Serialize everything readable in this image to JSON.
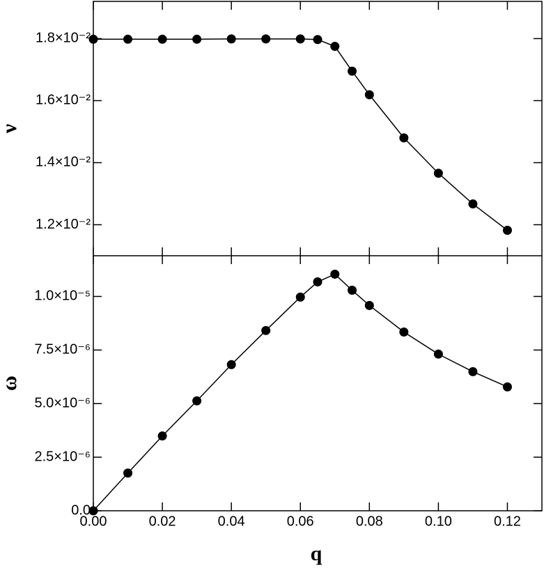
{
  "chart_data": [
    {
      "type": "line",
      "y_label": "ν",
      "x": [
        0,
        0.01,
        0.02,
        0.03,
        0.04,
        0.05,
        0.06,
        0.065,
        0.07,
        0.075,
        0.08,
        0.09,
        0.1,
        0.11,
        0.12
      ],
      "values": [
        0.01798,
        0.01798,
        0.01798,
        0.01798,
        0.01799,
        0.01799,
        0.01799,
        0.01797,
        0.01775,
        0.01695,
        0.01619,
        0.0148,
        0.01366,
        0.01267,
        0.01182
      ],
      "color": "#000000",
      "markers": true,
      "xlim": [
        0,
        0.13
      ],
      "xticks": [
        0,
        0.02,
        0.04,
        0.06,
        0.08,
        0.1,
        0.12
      ],
      "ylim": [
        0.011,
        0.0192
      ],
      "yticks": [
        {
          "value": 0.012,
          "label": "1.2×10⁻²"
        },
        {
          "value": 0.014,
          "label": "1.4×10⁻²"
        },
        {
          "value": 0.016,
          "label": "1.6×10⁻²"
        },
        {
          "value": 0.018,
          "label": "1.8×10⁻²"
        }
      ]
    },
    {
      "type": "line",
      "y_label": "ω",
      "x_label": "q",
      "x": [
        0,
        0.01,
        0.02,
        0.03,
        0.04,
        0.05,
        0.06,
        0.065,
        0.07,
        0.075,
        0.08,
        0.09,
        0.1,
        0.11,
        0.12
      ],
      "values": [
        0,
        1.76e-06,
        3.49e-06,
        5.13e-06,
        6.82e-06,
        8.41e-06,
        9.97e-06,
        1.068e-05,
        1.104e-05,
        1.029e-05,
        9.58e-06,
        8.34e-06,
        7.31e-06,
        6.49e-06,
        5.78e-06
      ],
      "color": "#000000",
      "markers": true,
      "xlim": [
        0,
        0.13
      ],
      "xticks": [
        {
          "value": 0,
          "label": "0.00"
        },
        {
          "value": 0.02,
          "label": "0.02"
        },
        {
          "value": 0.04,
          "label": "0.04"
        },
        {
          "value": 0.06,
          "label": "0.06"
        },
        {
          "value": 0.08,
          "label": "0.08"
        },
        {
          "value": 0.1,
          "label": "0.10"
        },
        {
          "value": 0.12,
          "label": "0.12"
        }
      ],
      "ylim": [
        0,
        1.19e-05
      ],
      "yticks": [
        {
          "value": 0,
          "label": "0.0"
        },
        {
          "value": 2.5e-06,
          "label": "2.5×10⁻⁶"
        },
        {
          "value": 5e-06,
          "label": "5.0×10⁻⁶"
        },
        {
          "value": 7.5e-06,
          "label": "7.5×10⁻⁶"
        },
        {
          "value": 1e-05,
          "label": "1.0×10⁻⁵"
        }
      ]
    }
  ]
}
